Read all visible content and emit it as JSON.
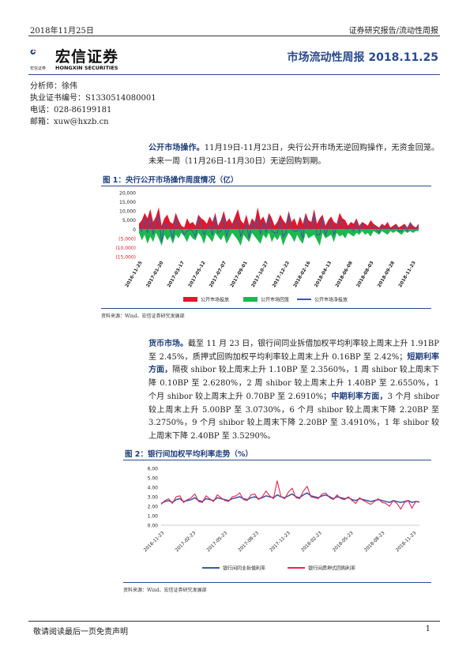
{
  "header": {
    "date": "2018年11月25日",
    "category": "证券研究报告/流动性周报",
    "title": "市场流动性周报 2018.11.25",
    "logo_cn": "宏信证券",
    "logo_sub_cn": "宏信证券",
    "logo_sub_en": "HONGXIN SECURITIES"
  },
  "analyst": {
    "name_line": "分析师：徐伟",
    "cert_line": "执业证书编号：S1330514080001",
    "phone_line": "电话：028-86199181",
    "email_line": "邮箱：xuw@hxzb.cn"
  },
  "section1": {
    "lead": "公开市场操作。",
    "body": "11月19日-11月23日，央行公开市场无逆回购操作，无资金回笼。未来一周（11月26日-11月30日）无逆回购到期。"
  },
  "figure1": {
    "title": "图 1：央行公开市场操作周度情况（亿）",
    "source": "资料来源：Wind、宏信证券研究发展部"
  },
  "section2": {
    "lead": "货币市场。",
    "p1": "截至 11 月 23 日，银行间同业拆借加权平均利率较上周末上升 1.91BP 至 2.45%，质押式回购加权平均利率较上周末上升 0.16BP 至 2.42%；",
    "lead2": "短期利率方面，",
    "p2": "隔夜 shibor 较上周末上升 1.10BP 至 2.3560%，1 周 shibor 较上周末下降 0.10BP 至 2.6280%，2 周 shibor 较上周末上升 1.40BP 至 2.6550%，1 个月 shibor 较上周末上升 0.70BP 至 2.6910%；",
    "lead3": "中期利率方面，",
    "p3": "3 个月 shibor 较上周末上升 5.00BP 至 3.0730%，6 个月 shibor 较上周末下降 2.20BP 至 3.2750%，9 个月 shibor 较上周末下降 2.20BP 至 3.4910%，1 年 shibor 较上周末下降 2.40BP 至 3.5290%。"
  },
  "figure2": {
    "title": "图 2：银行间加权平均利率走势（%）",
    "source": "资料来源：Wind、宏信证券研究发展部"
  },
  "footer": {
    "disclaimer": "敬请阅读最后一页免责声明",
    "page": "1"
  },
  "colors": {
    "brand_blue": "#2a4a8c",
    "red": "#e0182d",
    "green": "#1db84d",
    "line_blue": "#3a5ba8",
    "line_red": "#e8254e"
  },
  "chart_data": [
    {
      "type": "area",
      "ylim": [
        -15000,
        20000
      ],
      "yticks": [
        "20,000",
        "15,000",
        "10,000",
        "5,000",
        "0",
        "(5,000)",
        "(10,000)",
        "(15,000)"
      ],
      "ytick_values": [
        20000,
        15000,
        10000,
        5000,
        0,
        -5000,
        -10000,
        -15000
      ],
      "xticks": [
        "2016-11-25",
        "2017-01-20",
        "2017-03-17",
        "2017-05-12",
        "2017-07-07",
        "2017-09-01",
        "2017-10-27",
        "2017-12-22",
        "2018-02-16",
        "2018-04-13",
        "2018-06-08",
        "2018-08-03",
        "2018-09-28",
        "2018-11-23"
      ],
      "legend": [
        "公开市场投放",
        "公开市场回笼",
        "公开市场净投放"
      ],
      "legend_position": "bottom",
      "series": [
        {
          "name": "公开市场投放",
          "values": [
            3000,
            5000,
            9000,
            6000,
            11000,
            4000,
            7000,
            12000,
            2000,
            6000,
            8000,
            4000,
            3000,
            9000,
            5000,
            2000,
            1000,
            6000,
            3000,
            4000,
            2000,
            8000,
            6000,
            5000,
            3000,
            7000,
            4000,
            9000,
            2000,
            5000,
            10000,
            4000,
            6000,
            3000,
            7000,
            11000,
            5000,
            3000,
            8000,
            2000,
            6000,
            4000,
            12000,
            5000,
            7000,
            3000,
            9000,
            6000,
            2000,
            4000,
            8000,
            5000,
            3000,
            10000,
            4000,
            6000,
            2000,
            7000,
            3000,
            9000,
            5000,
            4000,
            11000,
            3000,
            6000,
            8000,
            2000,
            5000,
            7000,
            4000,
            3000,
            9000,
            6000,
            5000,
            2000,
            4000,
            3000,
            6000,
            2000,
            4000,
            3000,
            2000,
            5000,
            3000,
            2000,
            1000,
            3000,
            2000,
            4000,
            1000,
            2000,
            3000,
            1000,
            2000,
            3000,
            1000,
            4000,
            2000,
            1000,
            3000
          ]
        },
        {
          "name": "公开市场回笼",
          "values": [
            -2000,
            -6000,
            -3000,
            -8000,
            -4000,
            -7000,
            -2000,
            -5000,
            -9000,
            -3000,
            -6000,
            -4000,
            -8000,
            -3000,
            -5000,
            -2000,
            -4000,
            -7000,
            -3000,
            -5000,
            -6000,
            -2000,
            -4000,
            -8000,
            -3000,
            -5000,
            -7000,
            -2000,
            -4000,
            -6000,
            -3000,
            -8000,
            -5000,
            -2000,
            -4000,
            -6000,
            -9000,
            -3000,
            -5000,
            -7000,
            -2000,
            -4000,
            -6000,
            -8000,
            -3000,
            -5000,
            -2000,
            -7000,
            -4000,
            -6000,
            -3000,
            -9000,
            -5000,
            -2000,
            -4000,
            -7000,
            -3000,
            -6000,
            -8000,
            -2000,
            -5000,
            -4000,
            -3000,
            -6000,
            -9000,
            -2000,
            -5000,
            -4000,
            -3000,
            -7000,
            -2000,
            -4000,
            -3000,
            -5000,
            -2000,
            -3000,
            -4000,
            -2000,
            -3000,
            -1000,
            -3000,
            -2000,
            -4000,
            -1000,
            -2000,
            -3000,
            -1000,
            -2000,
            -3000,
            -1000,
            -2000,
            -1000,
            -2000,
            -3000,
            -1000,
            -2000,
            -1000,
            -2000,
            -1000,
            -1000
          ]
        },
        {
          "name": "公开市场净投放",
          "values": [
            1000,
            -1000,
            6000,
            -2000,
            7000,
            -3000,
            5000,
            7000,
            -7000,
            3000,
            2000,
            0,
            -5000,
            6000,
            0,
            0,
            -3000,
            -1000,
            0,
            -1000,
            -4000,
            6000,
            2000,
            -3000,
            0,
            2000,
            -3000,
            7000,
            -2000,
            -1000,
            7000,
            -4000,
            1000,
            1000,
            3000,
            5000,
            -4000,
            0,
            3000,
            -5000,
            4000,
            0,
            6000,
            -3000,
            4000,
            -2000,
            7000,
            -1000,
            -2000,
            -2000,
            5000,
            -4000,
            -2000,
            8000,
            0,
            -1000,
            -1000,
            1000,
            -5000,
            7000,
            0,
            0,
            8000,
            -3000,
            -3000,
            6000,
            -3000,
            1000,
            4000,
            -3000,
            1000,
            5000,
            3000,
            0,
            0,
            1000,
            -1000,
            4000,
            -1000,
            3000,
            0,
            0,
            1000,
            2000,
            0,
            -2000,
            2000,
            0,
            1000,
            0,
            0,
            2000,
            -1000,
            -1000,
            2000,
            -1000,
            3000,
            0,
            0,
            2000
          ]
        }
      ]
    },
    {
      "type": "line",
      "ylim": [
        0,
        6
      ],
      "yticks": [
        "6.00",
        "5.00",
        "4.00",
        "3.00",
        "2.00",
        "1.00",
        "0.00"
      ],
      "ytick_values": [
        6,
        5,
        4,
        3,
        2,
        1,
        0
      ],
      "xticks": [
        "2016-11-23",
        "2017-02-23",
        "2017-05-23",
        "2017-08-23",
        "2017-11-23",
        "2018-02-23",
        "2018-05-23",
        "2018-08-23",
        "2018-11-23"
      ],
      "legend": [
        "银行间同业拆借利率",
        "银行间质押式回购利率"
      ],
      "legend_position": "bottom",
      "series": [
        {
          "name": "银行间同业拆借利率",
          "values": [
            2.3,
            2.5,
            2.6,
            2.4,
            2.7,
            2.8,
            2.5,
            2.6,
            2.7,
            2.9,
            2.6,
            2.5,
            2.8,
            2.7,
            2.6,
            2.9,
            2.8,
            2.7,
            2.6,
            2.8,
            2.9,
            3.0,
            2.8,
            2.7,
            2.9,
            3.0,
            2.8,
            2.9,
            3.1,
            3.0,
            2.9,
            3.2,
            3.0,
            2.9,
            3.1,
            3.3,
            3.0,
            2.9,
            3.2,
            3.4,
            3.1,
            3.0,
            2.9,
            3.1,
            3.2,
            3.0,
            2.8,
            3.0,
            2.9,
            2.8,
            2.9,
            2.7,
            2.6,
            2.8,
            2.7,
            2.6,
            2.5,
            2.6,
            2.7,
            2.6,
            2.5,
            2.4,
            2.6,
            2.5,
            2.4,
            2.5,
            2.6,
            2.4,
            2.5,
            2.45
          ]
        },
        {
          "name": "银行间质押式回购利率",
          "values": [
            2.2,
            2.6,
            2.8,
            2.3,
            3.0,
            3.1,
            2.4,
            2.7,
            2.9,
            3.3,
            2.5,
            2.4,
            3.1,
            2.8,
            2.5,
            3.2,
            2.9,
            2.6,
            2.5,
            3.0,
            3.1,
            3.4,
            2.7,
            2.6,
            3.2,
            3.3,
            2.7,
            3.0,
            3.6,
            3.1,
            2.8,
            4.7,
            3.0,
            2.8,
            3.5,
            3.9,
            2.9,
            2.8,
            3.6,
            4.1,
            3.0,
            2.9,
            2.8,
            3.3,
            3.4,
            2.9,
            2.7,
            3.2,
            2.8,
            2.7,
            3.0,
            2.6,
            2.3,
            2.9,
            2.6,
            2.4,
            2.2,
            2.5,
            2.8,
            2.4,
            2.3,
            2.0,
            2.6,
            2.3,
            1.7,
            2.4,
            2.6,
            1.8,
            2.5,
            2.42
          ]
        }
      ]
    }
  ]
}
